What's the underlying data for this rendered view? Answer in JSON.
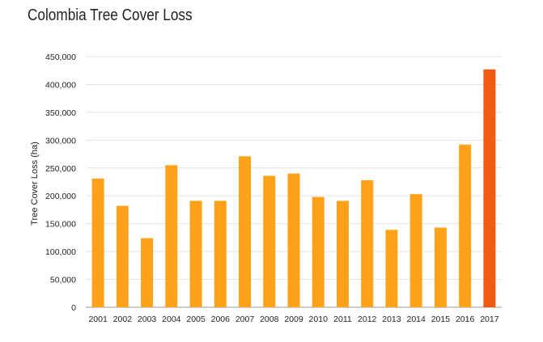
{
  "chart_data": {
    "type": "bar",
    "title": "Colombia Tree Cover Loss",
    "xlabel": "",
    "ylabel": "Tree Cover Loss (ha)",
    "categories": [
      "2001",
      "2002",
      "2003",
      "2004",
      "2005",
      "2006",
      "2007",
      "2008",
      "2009",
      "2010",
      "2011",
      "2012",
      "2013",
      "2014",
      "2015",
      "2016",
      "2017"
    ],
    "values": [
      231000,
      182000,
      124000,
      255000,
      191000,
      191000,
      271000,
      236000,
      240000,
      198000,
      191000,
      228000,
      139000,
      203000,
      143000,
      292000,
      427000
    ],
    "ylim": [
      0,
      450000
    ],
    "yticks": [
      0,
      50000,
      100000,
      150000,
      200000,
      250000,
      300000,
      350000,
      400000,
      450000
    ],
    "ytick_labels": [
      "0",
      "50,000",
      "100,000",
      "150,000",
      "200,000",
      "250,000",
      "300,000",
      "350,000",
      "400,000",
      "450,000"
    ],
    "grid": true,
    "colors": {
      "bar": "#FFA21A",
      "bar_highlight": "#F05A12",
      "grid": "#E3E3E3",
      "axis": "#999999"
    }
  }
}
